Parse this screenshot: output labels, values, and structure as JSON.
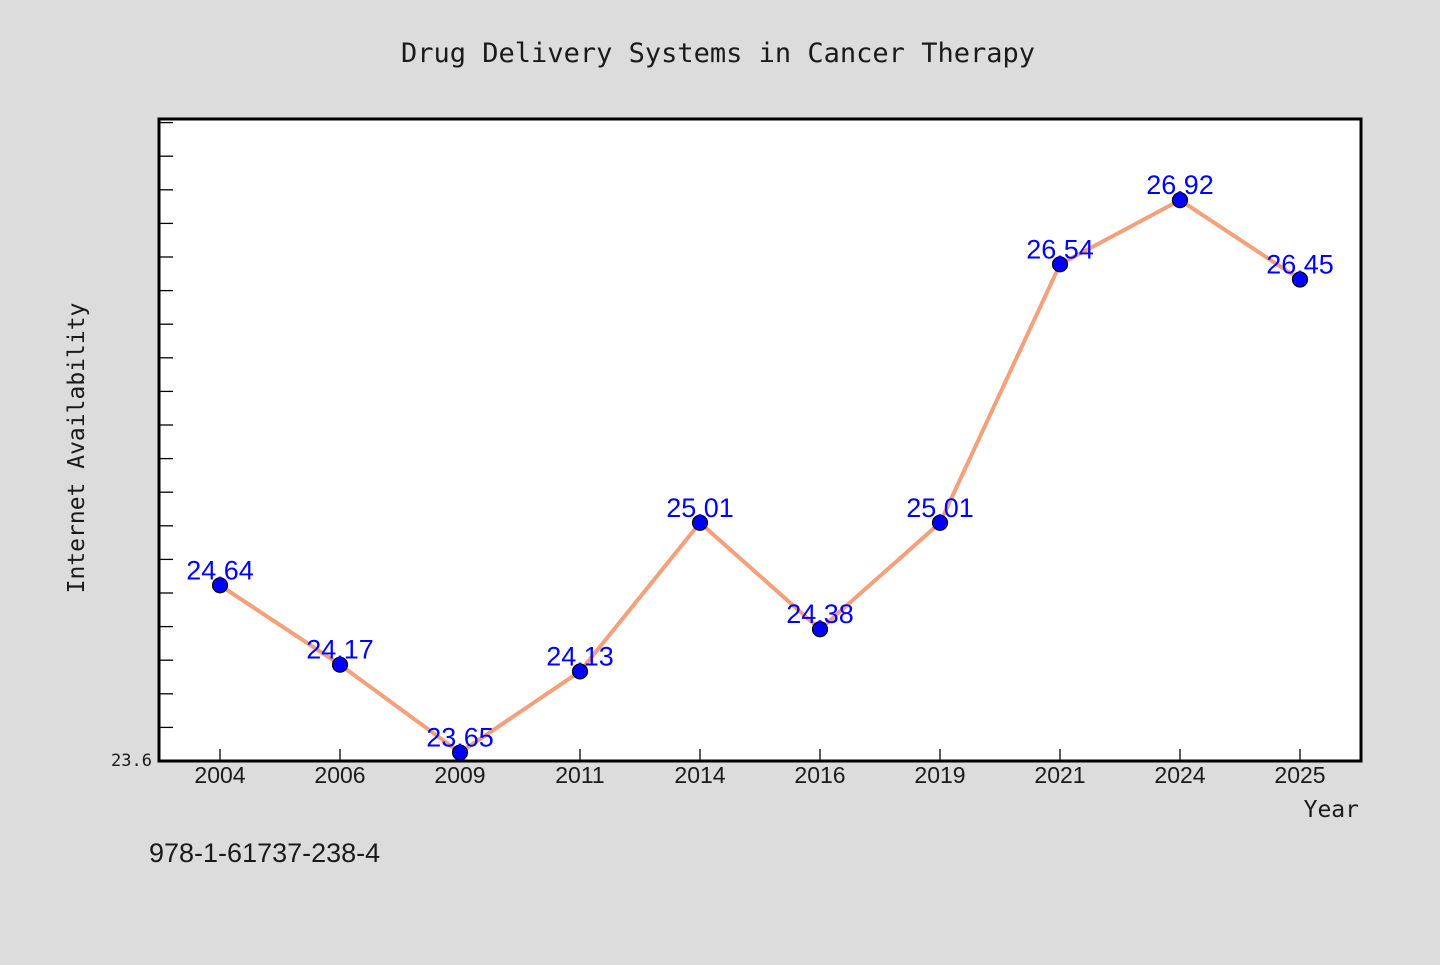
{
  "chart_data": {
    "type": "line",
    "title": "Drug Delivery Systems in Cancer Therapy",
    "xlabel": "Year",
    "ylabel": "Internet Availability",
    "categories": [
      "2004",
      "2006",
      "2009",
      "2011",
      "2014",
      "2016",
      "2019",
      "2021",
      "2024",
      "2025"
    ],
    "series": [
      {
        "values": [
          24.64,
          24.17,
          23.65,
          24.13,
          25.01,
          24.38,
          25.01,
          26.54,
          26.92,
          26.45
        ],
        "labels": [
          "24.64",
          "24.17",
          "23.65",
          "24.13",
          "25.01",
          "24.38",
          "25.01",
          "26.54",
          "26.92",
          "26.45"
        ]
      }
    ],
    "ylim": [
      23.6,
      27.4
    ],
    "y_tick_labels": [
      "23.6"
    ],
    "grid": false,
    "colors": {
      "background": "#dcdcdc",
      "plot_area": "#ffffff",
      "line": "#f4a07a",
      "marker": "#0000ff",
      "data_label": "#0000ff",
      "text": "#1a1a1a"
    }
  },
  "footer": {
    "isbn": "978-1-61737-238-4"
  }
}
